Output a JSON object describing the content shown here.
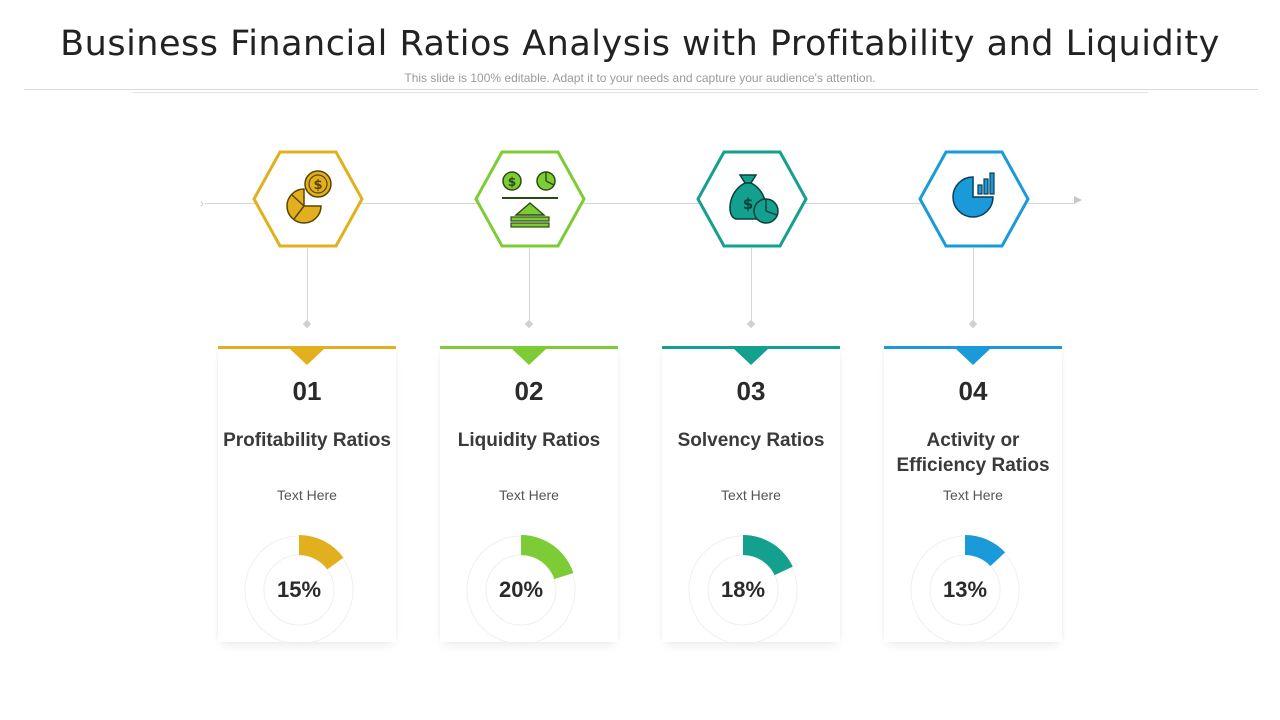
{
  "title": "Business Financial Ratios Analysis with Profitability and Liquidity",
  "subtitle": "This slide is 100% editable. Adapt it to your needs and capture your audience's attention.",
  "items": [
    {
      "number": "01",
      "name": "Profitability Ratios",
      "text": "Text Here",
      "percent_label": "15%",
      "percent": 15,
      "color": "#e2b01f",
      "icon": "profit-pie-dollar-icon"
    },
    {
      "number": "02",
      "name": "Liquidity Ratios",
      "text": "Text Here",
      "percent_label": "20%",
      "percent": 20,
      "color": "#7dcc36",
      "icon": "coin-chart-upload-icon"
    },
    {
      "number": "03",
      "name": "Solvency Ratios",
      "text": "Text Here",
      "percent_label": "18%",
      "percent": 18,
      "color": "#14a08e",
      "icon": "money-bag-pie-icon"
    },
    {
      "number": "04",
      "name": "Activity or Efficiency Ratios",
      "text": "Text Here",
      "percent_label": "13%",
      "percent": 13,
      "color": "#1a9ad8",
      "icon": "pie-bar-chart-icon"
    }
  ]
}
